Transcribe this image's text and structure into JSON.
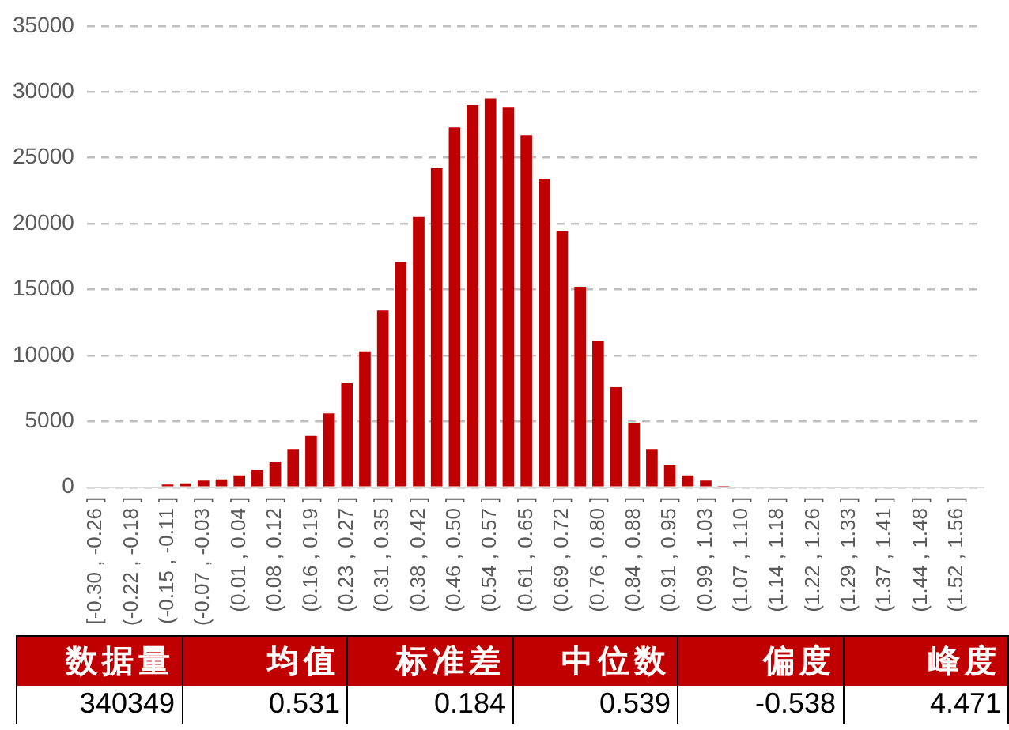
{
  "chart_data": [
    {
      "type": "bar",
      "categories": [
        "[-0.30 , -0.26 ]",
        null,
        "(-0.22 , -0.18 ]",
        null,
        "(-0.15 , -0.11 ]",
        null,
        "(-0.07 , -0.03 ]",
        null,
        "(0.01 , 0.04 ]",
        null,
        "(0.08 , 0.12 ]",
        null,
        "(0.16 , 0.19 ]",
        null,
        "(0.23 , 0.27 ]",
        null,
        "(0.31 , 0.35 ]",
        null,
        "(0.38 , 0.42 ]",
        null,
        "(0.46 , 0.50 ]",
        null,
        "(0.54 , 0.57 ]",
        null,
        "(0.61 , 0.65 ]",
        null,
        "(0.69 , 0.72 ]",
        null,
        "(0.76 , 0.80 ]",
        null,
        "(0.84 , 0.88 ]",
        null,
        "(0.91 , 0.95 ]",
        null,
        "(0.99 , 1.03 ]",
        null,
        "(1.07 , 1.10 ]",
        null,
        "(1.14 , 1.18 ]",
        null,
        "(1.22 , 1.26 ]",
        null,
        "(1.29 , 1.33 ]",
        null,
        "(1.37 , 1.41 ]",
        null,
        "(1.44 , 1.48 ]",
        null,
        "(1.52 , 1.56 ]",
        null
      ],
      "values": [
        0,
        0,
        0,
        0,
        200,
        300,
        500,
        600,
        900,
        1300,
        1900,
        2900,
        3900,
        5600,
        7900,
        10300,
        13400,
        17100,
        20500,
        24200,
        27300,
        29000,
        29500,
        28800,
        26700,
        23400,
        19400,
        15200,
        11100,
        7600,
        4900,
        2900,
        1700,
        900,
        500,
        100,
        0,
        0,
        0,
        0,
        0,
        0,
        0,
        0,
        0,
        0,
        0,
        0,
        0,
        0
      ],
      "color": "#c00000",
      "ylim": [
        0,
        35000
      ],
      "yticks": [
        0,
        5000,
        10000,
        15000,
        20000,
        25000,
        30000,
        35000
      ],
      "grid": "y"
    },
    {
      "type": "other",
      "categories": [
        "数据量",
        "均值",
        "标准差",
        "中位数",
        "偏度",
        "峰度"
      ],
      "values": [
        340349,
        0.531,
        0.184,
        0.539,
        -0.538,
        4.471
      ],
      "data_labels": true
    }
  ]
}
